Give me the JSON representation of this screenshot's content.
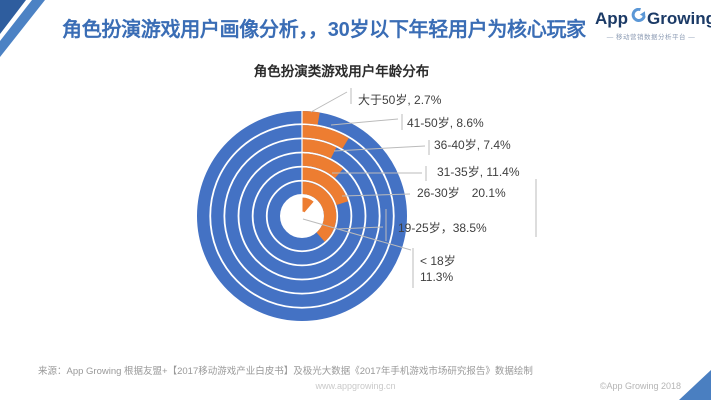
{
  "header": {
    "title": "角色扮演游戏用户画像分析，，30岁以下年轻用户为核心玩家",
    "logo": {
      "app": "App",
      "growing": "Growing",
      "tagline": "— 移动营销数据分析平台 —"
    }
  },
  "chart_data": {
    "type": "concentric-donut",
    "title": "角色扮演类游戏用户年龄分布",
    "categories": [
      "大于50岁",
      "41-50岁",
      "36-40岁",
      "31-35岁",
      "26-30岁",
      "19-25岁",
      "<18岁"
    ],
    "values": [
      2.7,
      8.6,
      7.4,
      11.4,
      20.1,
      38.5,
      11.3
    ],
    "unit": "%",
    "ring_order": "outermost-to-innermost; last category drawn as small wedge at center",
    "arc_start": "12 o'clock, clockwise",
    "legend": "none",
    "colors": {
      "arc": "#ED7D31",
      "remainder": "#4472C4",
      "leader": "#BBBBBB"
    },
    "point_labels": [
      "大于50岁, 2.7%",
      "41-50岁, 8.6%",
      "36-40岁, 7.4%",
      "31-35岁, 11.4%",
      "26-30岁　20.1%",
      "19-25岁，38.5%",
      "< 18岁",
      "11.3%"
    ]
  },
  "footer": {
    "source": "来源：App Growing 根据友盟+【2017移动游戏产业白皮书】及极光大数据《2017年手机游戏市场研究报告》数据绘制",
    "site": "www.appgrowing.cn",
    "copyright": "©App Growing 2018"
  }
}
